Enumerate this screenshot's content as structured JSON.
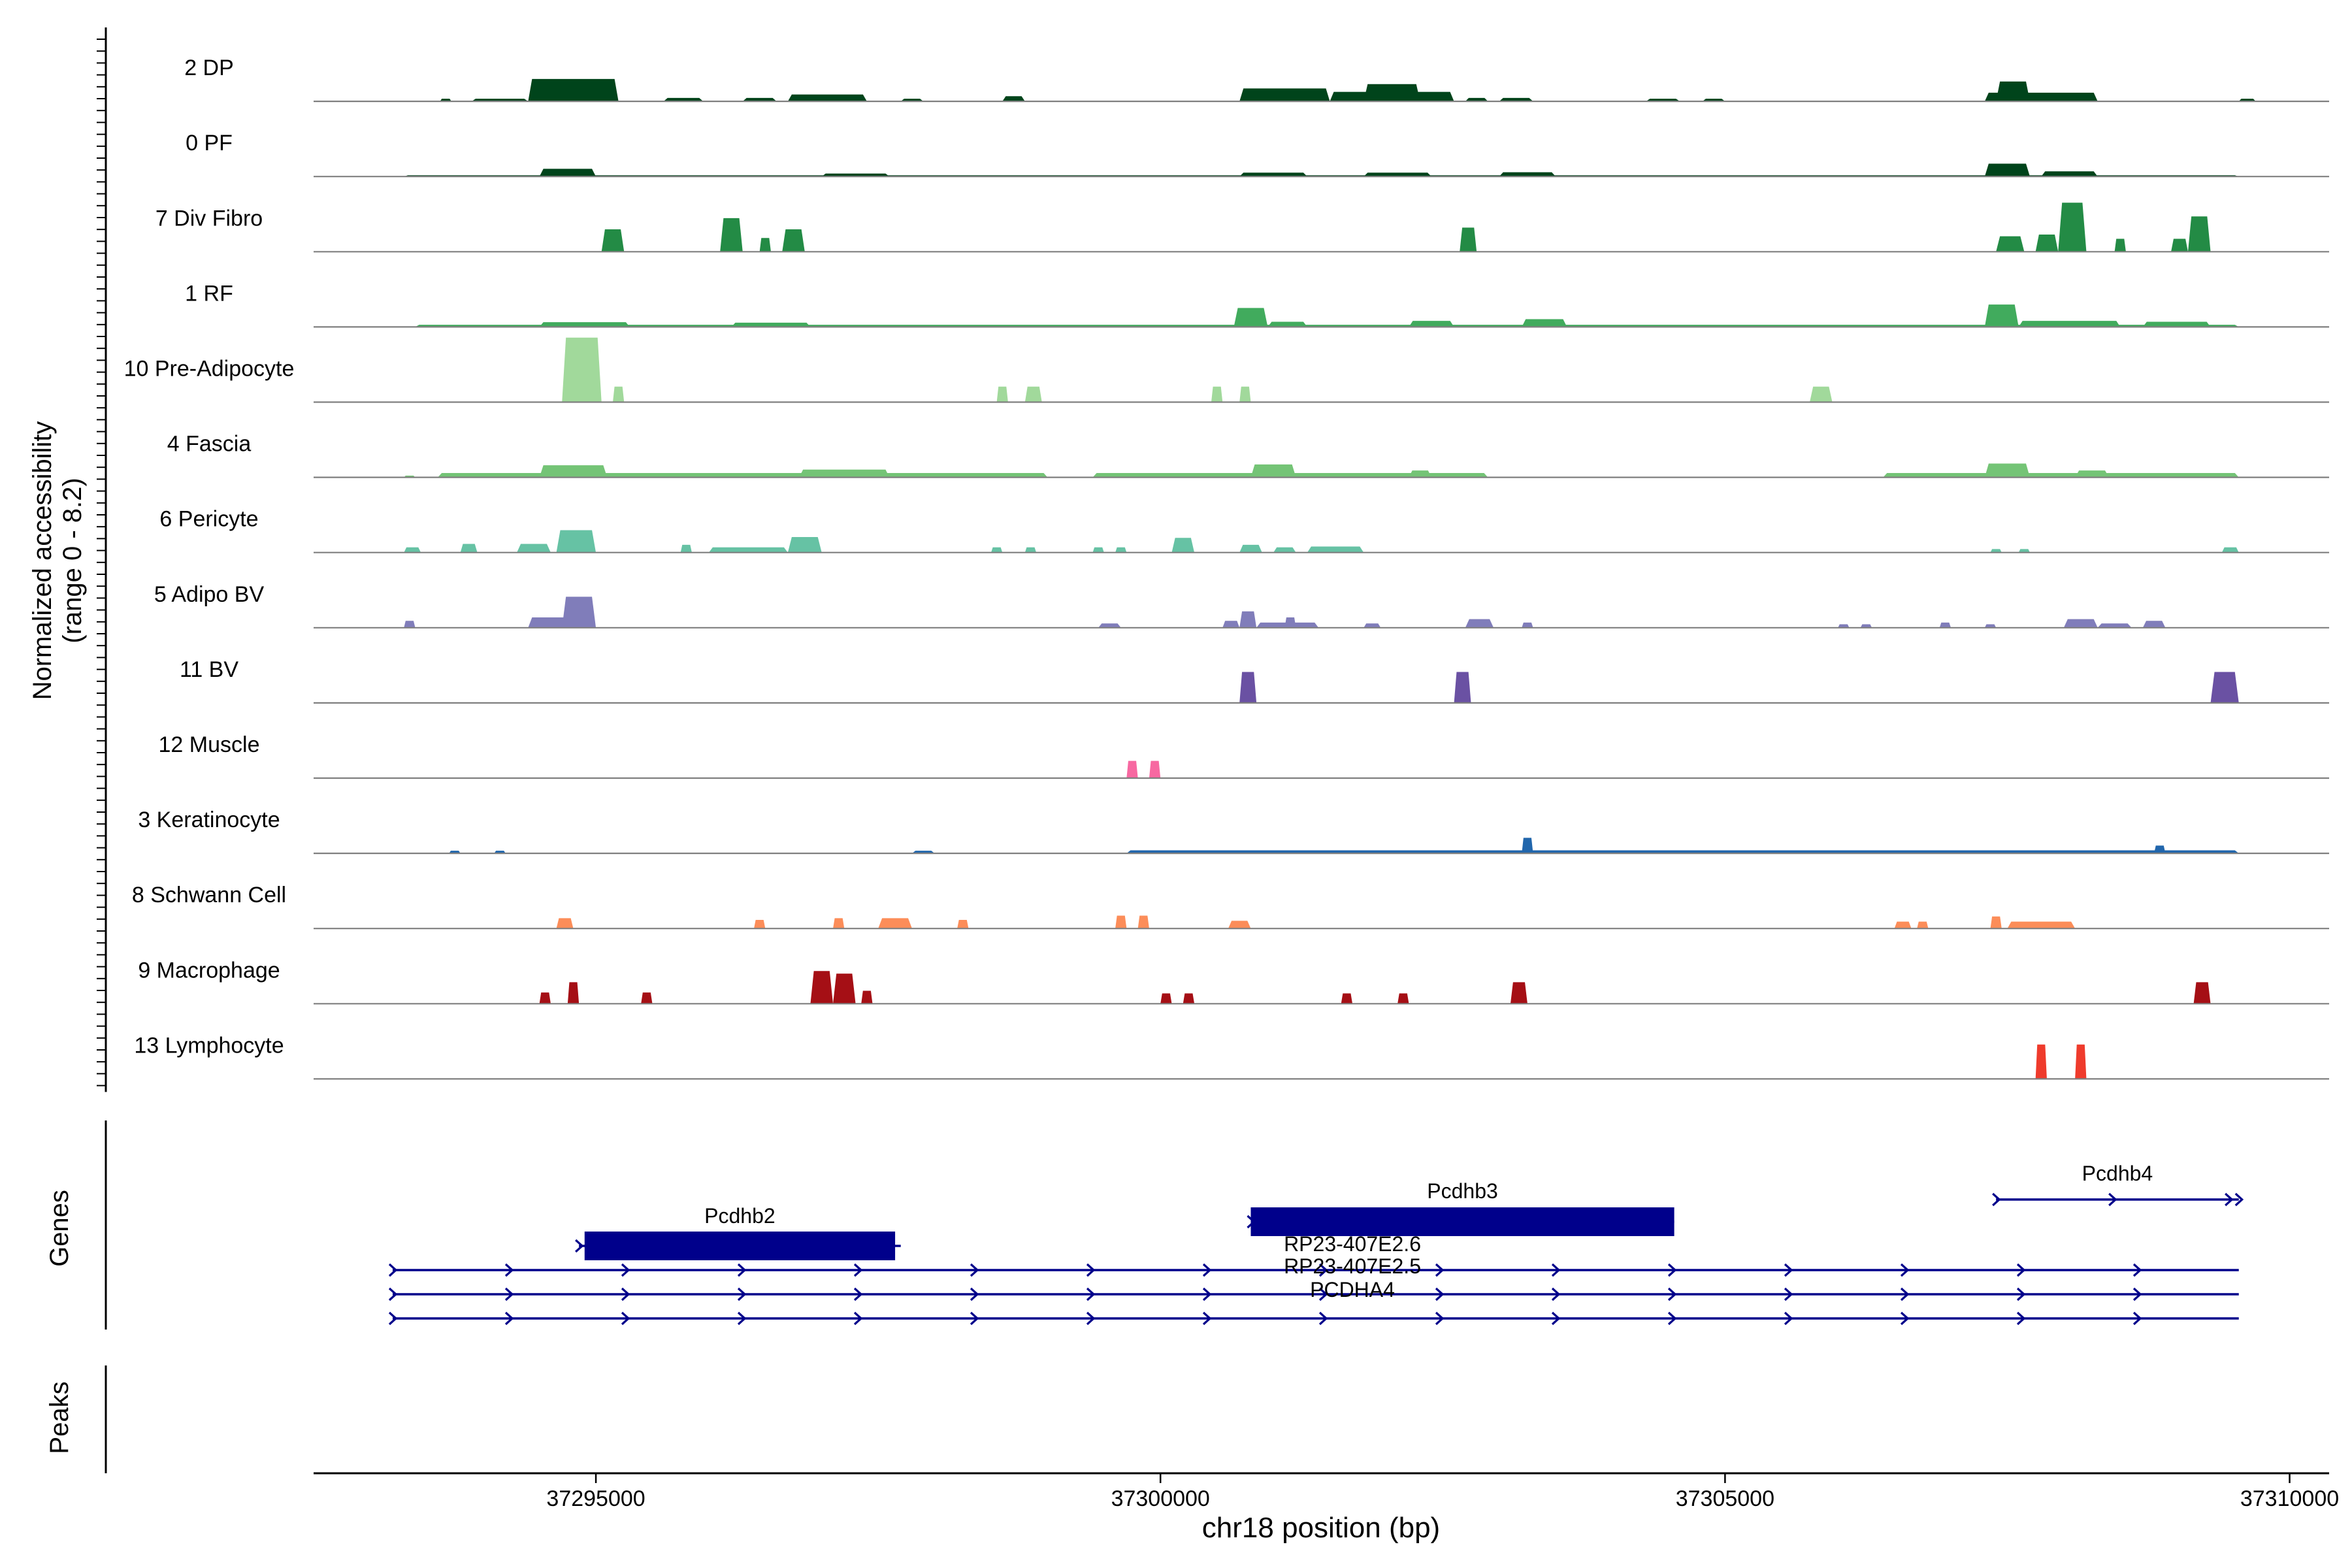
{
  "chart_data": {
    "type": "area",
    "title": "",
    "ylabel": "Normalized accessibility\n(range 0 - 8.2)",
    "ylabel_line1": "Normalized accessibility",
    "ylabel_line2": "(range 0 - 8.2)",
    "xlabel": "chr18 position (bp)",
    "xlim": [
      37292500,
      37310350
    ],
    "x_ticks": [
      37295000,
      37300000,
      37305000,
      37310000
    ],
    "x_tick_labels": [
      "37295000",
      "37300000",
      "37305000",
      "37310000"
    ],
    "ylim": [
      0,
      8.2
    ],
    "tracks": [
      {
        "name": "2 DP",
        "color": "#00441b",
        "peaks": [
          {
            "s": 37293620,
            "e": 37293720,
            "h": 0.3
          },
          {
            "s": 37293900,
            "e": 37294400,
            "h": 0.3
          },
          {
            "s": 37294400,
            "e": 37295200,
            "h": 2.6
          },
          {
            "s": 37295600,
            "e": 37295950,
            "h": 0.4
          },
          {
            "s": 37296300,
            "e": 37296600,
            "h": 0.4
          },
          {
            "s": 37296700,
            "e": 37297400,
            "h": 0.8
          },
          {
            "s": 37297700,
            "e": 37297900,
            "h": 0.3
          },
          {
            "s": 37298600,
            "e": 37298800,
            "h": 0.6
          },
          {
            "s": 37300700,
            "e": 37301500,
            "h": 1.5
          },
          {
            "s": 37301500,
            "e": 37302600,
            "h": 1.1
          },
          {
            "s": 37301800,
            "e": 37302300,
            "h": 2.0
          },
          {
            "s": 37302700,
            "e": 37302900,
            "h": 0.4
          },
          {
            "s": 37303000,
            "e": 37303300,
            "h": 0.4
          },
          {
            "s": 37304300,
            "e": 37304600,
            "h": 0.3
          },
          {
            "s": 37304800,
            "e": 37305000,
            "h": 0.3
          },
          {
            "s": 37307300,
            "e": 37308300,
            "h": 1.0
          },
          {
            "s": 37307400,
            "e": 37307700,
            "h": 2.3
          },
          {
            "s": 37309550,
            "e": 37309700,
            "h": 0.3
          }
        ]
      },
      {
        "name": "0 PF",
        "color": "#00441b",
        "peaks": [
          {
            "s": 37293300,
            "e": 37309550,
            "h": 0.15
          },
          {
            "s": 37294500,
            "e": 37295000,
            "h": 0.9
          },
          {
            "s": 37297000,
            "e": 37297600,
            "h": 0.35
          },
          {
            "s": 37300700,
            "e": 37301300,
            "h": 0.45
          },
          {
            "s": 37301800,
            "e": 37302400,
            "h": 0.45
          },
          {
            "s": 37303000,
            "e": 37303500,
            "h": 0.5
          },
          {
            "s": 37307300,
            "e": 37307700,
            "h": 1.5
          },
          {
            "s": 37307800,
            "e": 37308300,
            "h": 0.6
          }
        ]
      },
      {
        "name": "7 Div Fibro",
        "color": "#238b45",
        "peaks": [
          {
            "s": 37295050,
            "e": 37295250,
            "h": 2.6
          },
          {
            "s": 37296100,
            "e": 37296300,
            "h": 3.9
          },
          {
            "s": 37296450,
            "e": 37296550,
            "h": 1.6
          },
          {
            "s": 37296650,
            "e": 37296850,
            "h": 2.6
          },
          {
            "s": 37302650,
            "e": 37302800,
            "h": 2.8
          },
          {
            "s": 37307400,
            "e": 37307650,
            "h": 1.8
          },
          {
            "s": 37307750,
            "e": 37307950,
            "h": 2.0
          },
          {
            "s": 37307950,
            "e": 37308200,
            "h": 5.7
          },
          {
            "s": 37308450,
            "e": 37308550,
            "h": 1.5
          },
          {
            "s": 37308950,
            "e": 37309100,
            "h": 1.5
          },
          {
            "s": 37309100,
            "e": 37309300,
            "h": 4.1
          }
        ]
      },
      {
        "name": "1 RF",
        "color": "#41ab5d",
        "peaks": [
          {
            "s": 37293400,
            "e": 37309550,
            "h": 0.25
          },
          {
            "s": 37294500,
            "e": 37295300,
            "h": 0.55
          },
          {
            "s": 37296200,
            "e": 37296900,
            "h": 0.5
          },
          {
            "s": 37300650,
            "e": 37300950,
            "h": 2.2
          },
          {
            "s": 37300950,
            "e": 37301300,
            "h": 0.6
          },
          {
            "s": 37302200,
            "e": 37302600,
            "h": 0.7
          },
          {
            "s": 37303200,
            "e": 37303600,
            "h": 0.9
          },
          {
            "s": 37307300,
            "e": 37307600,
            "h": 2.6
          },
          {
            "s": 37307600,
            "e": 37308500,
            "h": 0.7
          },
          {
            "s": 37308700,
            "e": 37309300,
            "h": 0.6
          }
        ]
      },
      {
        "name": "10 Pre-Adipocyte",
        "color": "#a1d99b",
        "peaks": [
          {
            "s": 37294700,
            "e": 37295050,
            "h": 7.5
          },
          {
            "s": 37295150,
            "e": 37295250,
            "h": 1.8
          },
          {
            "s": 37298550,
            "e": 37298650,
            "h": 1.8
          },
          {
            "s": 37298800,
            "e": 37298950,
            "h": 1.8
          },
          {
            "s": 37300450,
            "e": 37300550,
            "h": 1.8
          },
          {
            "s": 37300700,
            "e": 37300800,
            "h": 1.8
          },
          {
            "s": 37305750,
            "e": 37305950,
            "h": 1.8
          }
        ]
      },
      {
        "name": "4 Fascia",
        "color": "#74c476",
        "peaks": [
          {
            "s": 37293300,
            "e": 37293400,
            "h": 0.2
          },
          {
            "s": 37293600,
            "e": 37299000,
            "h": 0.5
          },
          {
            "s": 37294500,
            "e": 37295100,
            "h": 1.4
          },
          {
            "s": 37296800,
            "e": 37297600,
            "h": 0.9
          },
          {
            "s": 37299400,
            "e": 37302900,
            "h": 0.5
          },
          {
            "s": 37300800,
            "e": 37301200,
            "h": 1.5
          },
          {
            "s": 37302200,
            "e": 37302400,
            "h": 0.8
          },
          {
            "s": 37306400,
            "e": 37309550,
            "h": 0.5
          },
          {
            "s": 37307300,
            "e": 37307700,
            "h": 1.6
          },
          {
            "s": 37308100,
            "e": 37308400,
            "h": 0.8
          }
        ]
      },
      {
        "name": "6 Pericyte",
        "color": "#66c2a4",
        "peaks": [
          {
            "s": 37293300,
            "e": 37293450,
            "h": 0.6
          },
          {
            "s": 37293800,
            "e": 37293950,
            "h": 1.0
          },
          {
            "s": 37294300,
            "e": 37294600,
            "h": 1.0
          },
          {
            "s": 37294650,
            "e": 37295000,
            "h": 2.6
          },
          {
            "s": 37295750,
            "e": 37295850,
            "h": 0.9
          },
          {
            "s": 37296000,
            "e": 37296700,
            "h": 0.6
          },
          {
            "s": 37296700,
            "e": 37297000,
            "h": 1.8
          },
          {
            "s": 37298500,
            "e": 37298600,
            "h": 0.6
          },
          {
            "s": 37298800,
            "e": 37298900,
            "h": 0.6
          },
          {
            "s": 37299400,
            "e": 37299500,
            "h": 0.6
          },
          {
            "s": 37299600,
            "e": 37299700,
            "h": 0.6
          },
          {
            "s": 37300100,
            "e": 37300300,
            "h": 1.7
          },
          {
            "s": 37300700,
            "e": 37300900,
            "h": 0.9
          },
          {
            "s": 37301000,
            "e": 37301200,
            "h": 0.6
          },
          {
            "s": 37301300,
            "e": 37301800,
            "h": 0.7
          },
          {
            "s": 37307350,
            "e": 37307450,
            "h": 0.4
          },
          {
            "s": 37307600,
            "e": 37307700,
            "h": 0.4
          },
          {
            "s": 37309400,
            "e": 37309550,
            "h": 0.6
          }
        ]
      },
      {
        "name": "5 Adipo BV",
        "color": "#807dba",
        "peaks": [
          {
            "s": 37293300,
            "e": 37293400,
            "h": 0.8
          },
          {
            "s": 37294400,
            "e": 37295000,
            "h": 1.2
          },
          {
            "s": 37294700,
            "e": 37295000,
            "h": 3.6
          },
          {
            "s": 37299450,
            "e": 37299650,
            "h": 0.5
          },
          {
            "s": 37300550,
            "e": 37300700,
            "h": 0.8
          },
          {
            "s": 37300700,
            "e": 37300850,
            "h": 1.9
          },
          {
            "s": 37300850,
            "e": 37301400,
            "h": 0.6
          },
          {
            "s": 37301100,
            "e": 37301200,
            "h": 1.2
          },
          {
            "s": 37301800,
            "e": 37301950,
            "h": 0.5
          },
          {
            "s": 37302700,
            "e": 37302950,
            "h": 1.0
          },
          {
            "s": 37303200,
            "e": 37303300,
            "h": 0.6
          },
          {
            "s": 37306000,
            "e": 37306100,
            "h": 0.4
          },
          {
            "s": 37306200,
            "e": 37306300,
            "h": 0.4
          },
          {
            "s": 37306900,
            "e": 37307000,
            "h": 0.6
          },
          {
            "s": 37307300,
            "e": 37307400,
            "h": 0.4
          },
          {
            "s": 37308000,
            "e": 37308300,
            "h": 1.0
          },
          {
            "s": 37308300,
            "e": 37308600,
            "h": 0.5
          },
          {
            "s": 37308700,
            "e": 37308900,
            "h": 0.8
          }
        ]
      },
      {
        "name": "11 BV",
        "color": "#6a51a3",
        "peaks": [
          {
            "s": 37300700,
            "e": 37300850,
            "h": 3.6
          },
          {
            "s": 37302600,
            "e": 37302750,
            "h": 3.6
          },
          {
            "s": 37309300,
            "e": 37309550,
            "h": 3.6
          }
        ]
      },
      {
        "name": "12 Muscle",
        "color": "#f768a1",
        "peaks": [
          {
            "s": 37299700,
            "e": 37299800,
            "h": 2.0
          },
          {
            "s": 37299900,
            "e": 37300000,
            "h": 2.0
          }
        ]
      },
      {
        "name": "3 Keratinocyte",
        "color": "#2166ac",
        "peaks": [
          {
            "s": 37293700,
            "e": 37293800,
            "h": 0.3
          },
          {
            "s": 37294100,
            "e": 37294200,
            "h": 0.3
          },
          {
            "s": 37297800,
            "e": 37298000,
            "h": 0.3
          },
          {
            "s": 37299700,
            "e": 37309550,
            "h": 0.35
          },
          {
            "s": 37303200,
            "e": 37303300,
            "h": 1.8
          },
          {
            "s": 37308800,
            "e": 37308900,
            "h": 0.9
          }
        ]
      },
      {
        "name": "8 Schwann Cell",
        "color": "#fc8d59",
        "peaks": [
          {
            "s": 37294650,
            "e": 37294800,
            "h": 1.2
          },
          {
            "s": 37296400,
            "e": 37296500,
            "h": 1.0
          },
          {
            "s": 37297100,
            "e": 37297200,
            "h": 1.2
          },
          {
            "s": 37297500,
            "e": 37297800,
            "h": 1.2
          },
          {
            "s": 37298200,
            "e": 37298300,
            "h": 1.0
          },
          {
            "s": 37299600,
            "e": 37299700,
            "h": 1.5
          },
          {
            "s": 37299800,
            "e": 37299900,
            "h": 1.5
          },
          {
            "s": 37300600,
            "e": 37300800,
            "h": 0.9
          },
          {
            "s": 37306500,
            "e": 37306650,
            "h": 0.8
          },
          {
            "s": 37306700,
            "e": 37306800,
            "h": 0.8
          },
          {
            "s": 37307350,
            "e": 37307450,
            "h": 1.4
          },
          {
            "s": 37307500,
            "e": 37308100,
            "h": 0.8
          }
        ]
      },
      {
        "name": "9 Macrophage",
        "color": "#a50f15",
        "peaks": [
          {
            "s": 37294500,
            "e": 37294600,
            "h": 1.3
          },
          {
            "s": 37294750,
            "e": 37294850,
            "h": 2.5
          },
          {
            "s": 37295400,
            "e": 37295500,
            "h": 1.3
          },
          {
            "s": 37296900,
            "e": 37297100,
            "h": 3.8
          },
          {
            "s": 37297100,
            "e": 37297300,
            "h": 3.5
          },
          {
            "s": 37297350,
            "e": 37297450,
            "h": 1.5
          },
          {
            "s": 37300000,
            "e": 37300100,
            "h": 1.2
          },
          {
            "s": 37300200,
            "e": 37300300,
            "h": 1.2
          },
          {
            "s": 37301600,
            "e": 37301700,
            "h": 1.2
          },
          {
            "s": 37302100,
            "e": 37302200,
            "h": 1.2
          },
          {
            "s": 37303100,
            "e": 37303250,
            "h": 2.5
          },
          {
            "s": 37309150,
            "e": 37309300,
            "h": 2.5
          }
        ]
      },
      {
        "name": "13 Lymphocyte",
        "color": "#ef3b2c",
        "peaks": [
          {
            "s": 37307750,
            "e": 37307850,
            "h": 4.0
          },
          {
            "s": 37308100,
            "e": 37308200,
            "h": 4.0
          }
        ]
      }
    ],
    "genes": [
      {
        "name": "Pcdhb2",
        "start": 37294850,
        "end": 37297700,
        "exon": [
          37294900,
          37297650
        ],
        "label_side": "above"
      },
      {
        "name": "Pcdhb3",
        "start": 37300800,
        "end": 37304550,
        "exon": [
          37300800,
          37304550
        ],
        "label_side": "above"
      },
      {
        "name": "Pcdhb4",
        "start": 37307400,
        "end": 37309550,
        "exon": null,
        "label_side": "above"
      },
      {
        "name": "RP23-407E2.6",
        "start": 37293200,
        "end": 37309550,
        "exon": null,
        "label_side": "above"
      },
      {
        "name": "RP23-407E2.5",
        "start": 37293200,
        "end": 37309550,
        "exon": null,
        "label_side": "above"
      },
      {
        "name": "PCDHA4",
        "start": 37293200,
        "end": 37309550,
        "exon": null,
        "label_side": "above"
      }
    ],
    "gene_track_label": "Genes",
    "peak_track_label": "Peaks",
    "peaks": []
  }
}
